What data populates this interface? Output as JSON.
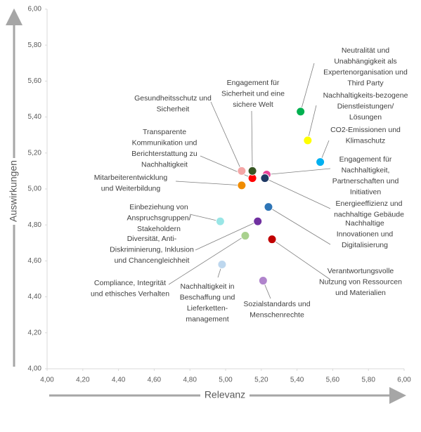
{
  "chart_data": {
    "type": "scatter",
    "x_label": "Relevanz",
    "y_label": "Auswirkungen",
    "xlim": [
      4,
      6
    ],
    "ylim": [
      4,
      6
    ],
    "xticks": [
      {
        "value": 4,
        "label": "4,00"
      },
      {
        "value": 4.2,
        "label": "4,20"
      },
      {
        "value": 4.4,
        "label": "4,40"
      },
      {
        "value": 4.6,
        "label": "4,60"
      },
      {
        "value": 4.8,
        "label": "4,80"
      },
      {
        "value": 5,
        "label": "5,00"
      },
      {
        "value": 5.2,
        "label": "5,20"
      },
      {
        "value": 5.4,
        "label": "5,40"
      },
      {
        "value": 5.6,
        "label": "5,60"
      },
      {
        "value": 5.8,
        "label": "5,80"
      },
      {
        "value": 6,
        "label": "6,00"
      }
    ],
    "yticks": [
      {
        "value": 4,
        "label": "4,00"
      },
      {
        "value": 4.2,
        "label": "4,20"
      },
      {
        "value": 4.4,
        "label": "4,40"
      },
      {
        "value": 4.6,
        "label": "4,60"
      },
      {
        "value": 4.8,
        "label": "4,80"
      },
      {
        "value": 5,
        "label": "5,00"
      },
      {
        "value": 5.2,
        "label": "5,20"
      },
      {
        "value": 5.4,
        "label": "5,40"
      },
      {
        "value": 5.6,
        "label": "5,60"
      },
      {
        "value": 5.8,
        "label": "5,80"
      },
      {
        "value": 6,
        "label": "6,00"
      }
    ],
    "grid": false,
    "series": [
      {
        "name": "Neutralität und\nUnabhängigkeit als\nExpertenorganisation und\nThird Party",
        "color": "#00b050",
        "x": [
          5.42
        ],
        "values": [
          5.43
        ]
      },
      {
        "name": "Nachhaltigkeits-bezogene\nDienstleistungen/\nLösungen",
        "color": "#ffff00",
        "x": [
          5.46
        ],
        "values": [
          5.27
        ]
      },
      {
        "name": "CO2-Emissionen und\nKlimaschutz",
        "color": "#00b0f0",
        "x": [
          5.53
        ],
        "values": [
          5.15
        ]
      },
      {
        "name": "Engagement für\nNachhaltigkeit,\nPartnerschaften und\nInitiativen",
        "color": "#e8449a",
        "x": [
          5.23
        ],
        "values": [
          5.08
        ]
      },
      {
        "name": "Energieeffizienz und\nnachhaltige Gebäude",
        "color": "#1f3864",
        "x": [
          5.22
        ],
        "values": [
          5.06
        ]
      },
      {
        "name": "Nachhaltige\nInnovationen und\nDigitalisierung",
        "color": "#2e75b6",
        "x": [
          5.24
        ],
        "values": [
          4.9
        ]
      },
      {
        "name": "Verantwortungsvolle\nNutzung von Ressourcen\nund Materialien",
        "color": "#c00000",
        "x": [
          5.26
        ],
        "values": [
          4.72
        ]
      },
      {
        "name": "Sozialstandards und\nMenschenrechte",
        "color": "#b084cc",
        "x": [
          5.21
        ],
        "values": [
          4.49
        ]
      },
      {
        "name": "Nachhaltigkeit in\nBeschaffung und\nLieferketten-\nmanagement",
        "color": "#bdd7ee",
        "x": [
          4.98
        ],
        "values": [
          4.58
        ]
      },
      {
        "name": "Compliance, Integrität\nund ethisches Verhalten",
        "color": "#a9d18e",
        "x": [
          5.11
        ],
        "values": [
          4.74
        ]
      },
      {
        "name": "Diversität, Anti-\nDiskriminierung, Inklusion\nund Chancengleichheit",
        "color": "#7030a0",
        "x": [
          5.18
        ],
        "values": [
          4.82
        ]
      },
      {
        "name": "Einbeziehung von\nAnspruchsgruppen/\nStakeholdern",
        "color": "#99e6e6",
        "x": [
          4.97
        ],
        "values": [
          4.82
        ]
      },
      {
        "name": "Mitarbeiterentwicklung\nund Weiterbildung",
        "color": "#f08c00",
        "x": [
          5.09
        ],
        "values": [
          5.02
        ]
      },
      {
        "name": "Transparente\nKommunikation und\nBerichterstattung zu\nNachhaltigkeit",
        "color": "#ff0000",
        "x": [
          5.15
        ],
        "values": [
          5.06
        ]
      },
      {
        "name": "Gesundheitsschutz und\nSicherheit",
        "color": "#f4a6a6",
        "x": [
          5.09
        ],
        "values": [
          5.1
        ]
      },
      {
        "name": "Engagement für\nSicherheit und eine\nsichere Welt",
        "color": "#375623",
        "x": [
          5.15
        ],
        "values": [
          5.1
        ]
      }
    ]
  }
}
